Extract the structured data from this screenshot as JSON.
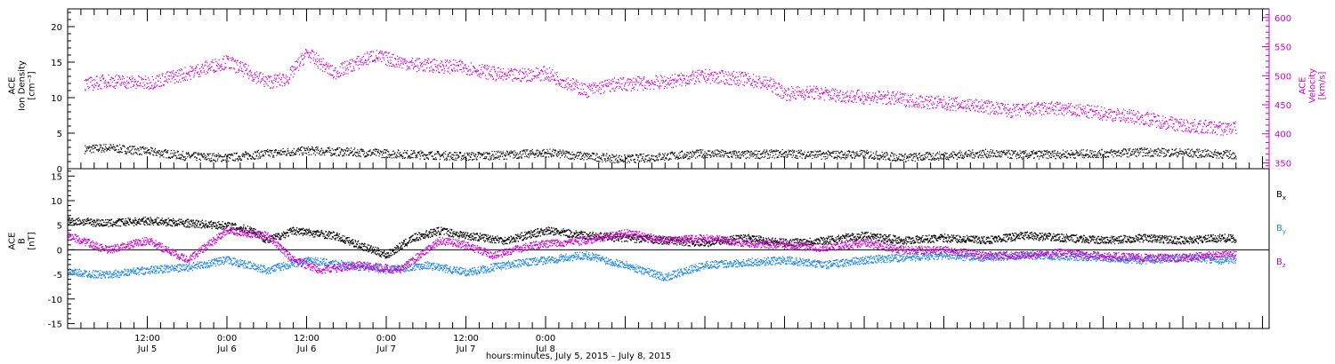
{
  "chart_data": [
    {
      "type": "scatter",
      "panel": "top",
      "ylabel_left": [
        "ACE",
        "Ion Density",
        "[cm⁻³]"
      ],
      "ylabel_right": [
        "ACE",
        "Velocity",
        "[km/s]"
      ],
      "y_left_ticks": [
        "0",
        "5",
        "10",
        "15",
        "20"
      ],
      "ylim_left": [
        0,
        22.5
      ],
      "y_right_ticks": [
        "350",
        "400",
        "450",
        "500",
        "550",
        "600"
      ],
      "ylim_right": [
        340,
        615
      ],
      "series": [
        {
          "axis": "left",
          "color": "#000000",
          "points": [
            [
              2.5,
              2.8
            ],
            [
              6,
              3.0
            ],
            [
              12,
              2.5
            ],
            [
              18,
              1.8
            ],
            [
              24,
              1.6
            ],
            [
              30,
              2.2
            ],
            [
              36,
              2.6
            ],
            [
              42,
              2.4
            ],
            [
              48,
              2.2
            ],
            [
              54,
              2.0
            ],
            [
              60,
              1.8
            ],
            [
              66,
              2.0
            ],
            [
              72,
              2.3
            ],
            [
              78,
              1.8
            ],
            [
              84,
              1.4
            ],
            [
              90,
              1.8
            ],
            [
              96,
              2.2
            ],
            [
              102,
              2.0
            ],
            [
              108,
              2.2
            ],
            [
              114,
              2.0
            ],
            [
              120,
              2.1
            ],
            [
              126,
              1.6
            ],
            [
              132,
              1.9
            ],
            [
              138,
              2.2
            ],
            [
              144,
              2.0
            ],
            [
              150,
              2.1
            ],
            [
              156,
              2.2
            ],
            [
              162,
              2.4
            ],
            [
              168,
              2.3
            ],
            [
              174,
              2.1
            ],
            [
              176,
              2.0
            ]
          ]
        },
        {
          "axis": "right",
          "color": "#cc00cc",
          "points": [
            [
              2.5,
              485
            ],
            [
              6,
              492
            ],
            [
              12,
              488
            ],
            [
              18,
              505
            ],
            [
              24,
              525
            ],
            [
              30,
              490
            ],
            [
              33,
              495
            ],
            [
              36,
              540
            ],
            [
              40,
              505
            ],
            [
              46,
              535
            ],
            [
              52,
              520
            ],
            [
              60,
              515
            ],
            [
              66,
              500
            ],
            [
              72,
              505
            ],
            [
              78,
              475
            ],
            [
              82,
              485
            ],
            [
              90,
              490
            ],
            [
              96,
              500
            ],
            [
              102,
              495
            ],
            [
              106,
              485
            ],
            [
              108,
              470
            ],
            [
              112,
              472
            ],
            [
              118,
              465
            ],
            [
              124,
              462
            ],
            [
              130,
              455
            ],
            [
              138,
              448
            ],
            [
              142,
              440
            ],
            [
              148,
              445
            ],
            [
              156,
              436
            ],
            [
              162,
              428
            ],
            [
              168,
              415
            ],
            [
              174,
              410
            ],
            [
              176,
              412
            ]
          ]
        }
      ]
    },
    {
      "type": "line",
      "panel": "bottom",
      "ylabel": [
        "ACE",
        "B",
        "[nT]"
      ],
      "y_ticks": [
        "-15",
        "-10",
        "-5",
        "0",
        "5",
        "10",
        "15"
      ],
      "ylim": [
        -16,
        16.5
      ],
      "series": [
        {
          "name": "B_x",
          "color": "#000000",
          "points": [
            [
              0,
              6
            ],
            [
              6,
              5.5
            ],
            [
              12,
              6
            ],
            [
              18,
              5.5
            ],
            [
              24,
              5
            ],
            [
              28,
              4
            ],
            [
              30,
              2
            ],
            [
              34,
              4
            ],
            [
              40,
              3
            ],
            [
              44,
              1
            ],
            [
              48,
              -1
            ],
            [
              52,
              2.5
            ],
            [
              56,
              4
            ],
            [
              60,
              3
            ],
            [
              66,
              2
            ],
            [
              72,
              4
            ],
            [
              78,
              3
            ],
            [
              84,
              2.5
            ],
            [
              90,
              2
            ],
            [
              96,
              1.5
            ],
            [
              102,
              2.5
            ],
            [
              108,
              1.5
            ],
            [
              114,
              2
            ],
            [
              120,
              3
            ],
            [
              126,
              2
            ],
            [
              132,
              2.5
            ],
            [
              138,
              2
            ],
            [
              144,
              3
            ],
            [
              150,
              2.5
            ],
            [
              156,
              2
            ],
            [
              162,
              2.5
            ],
            [
              168,
              2
            ],
            [
              174,
              2.5
            ],
            [
              176,
              2.3
            ]
          ]
        },
        {
          "name": "B_y",
          "color": "#1e88e5",
          "points": [
            [
              0,
              -4.5
            ],
            [
              6,
              -5
            ],
            [
              12,
              -4
            ],
            [
              18,
              -3.5
            ],
            [
              24,
              -2
            ],
            [
              30,
              -4
            ],
            [
              36,
              -2
            ],
            [
              42,
              -3
            ],
            [
              48,
              -4
            ],
            [
              54,
              -3
            ],
            [
              60,
              -4.5
            ],
            [
              66,
              -3
            ],
            [
              72,
              -2
            ],
            [
              78,
              -1
            ],
            [
              84,
              -3
            ],
            [
              90,
              -5.5
            ],
            [
              96,
              -3
            ],
            [
              102,
              -2.5
            ],
            [
              108,
              -2
            ],
            [
              114,
              -3
            ],
            [
              120,
              -2
            ],
            [
              126,
              -1.5
            ],
            [
              132,
              -1
            ],
            [
              138,
              -1.5
            ],
            [
              144,
              -1
            ],
            [
              150,
              -1.2
            ],
            [
              156,
              -1.5
            ],
            [
              162,
              -2
            ],
            [
              168,
              -1.5
            ],
            [
              174,
              -2
            ],
            [
              176,
              -1.8
            ]
          ]
        },
        {
          "name": "B_z",
          "color": "#cc00cc",
          "points": [
            [
              0,
              3
            ],
            [
              6,
              0
            ],
            [
              12,
              2
            ],
            [
              18,
              -2
            ],
            [
              24,
              4
            ],
            [
              30,
              3
            ],
            [
              34,
              -2
            ],
            [
              38,
              -4
            ],
            [
              44,
              -3
            ],
            [
              50,
              -4
            ],
            [
              56,
              2
            ],
            [
              60,
              1
            ],
            [
              64,
              -1
            ],
            [
              70,
              1
            ],
            [
              78,
              2
            ],
            [
              84,
              3.5
            ],
            [
              90,
              2
            ],
            [
              96,
              2.5
            ],
            [
              102,
              1.5
            ],
            [
              108,
              1
            ],
            [
              114,
              0.5
            ],
            [
              120,
              1.5
            ],
            [
              126,
              0
            ],
            [
              132,
              0
            ],
            [
              138,
              -1
            ],
            [
              144,
              -1
            ],
            [
              150,
              -0.5
            ],
            [
              156,
              -1.2
            ],
            [
              162,
              -1.5
            ],
            [
              168,
              -1.5
            ],
            [
              174,
              -0.8
            ],
            [
              176,
              -1
            ]
          ]
        }
      ],
      "legend": [
        {
          "text": "B",
          "sub": "x",
          "color": "#000000"
        },
        {
          "text": "B",
          "sub": "y",
          "color": "#1e88e5"
        },
        {
          "text": "B",
          "sub": "z",
          "color": "#cc00cc"
        }
      ]
    }
  ],
  "x_axis": {
    "range_hours": [
      0,
      181
    ],
    "ticks": [
      {
        "t": 12,
        "line1": "12:00",
        "line2": "Jul 5"
      },
      {
        "t": 24,
        "line1": "0:00",
        "line2": "Jul 6"
      },
      {
        "t": 36,
        "line1": "12:00",
        "line2": "Jul 6"
      },
      {
        "t": 48,
        "line1": "0:00",
        "line2": "Jul 7"
      },
      {
        "t": 60,
        "line1": "12:00",
        "line2": "Jul 7"
      },
      {
        "t": 72,
        "line1": "0:00",
        "line2": "Jul 8"
      }
    ],
    "label": "hours:minutes,  July  5, 2015 – July  8, 2015"
  }
}
